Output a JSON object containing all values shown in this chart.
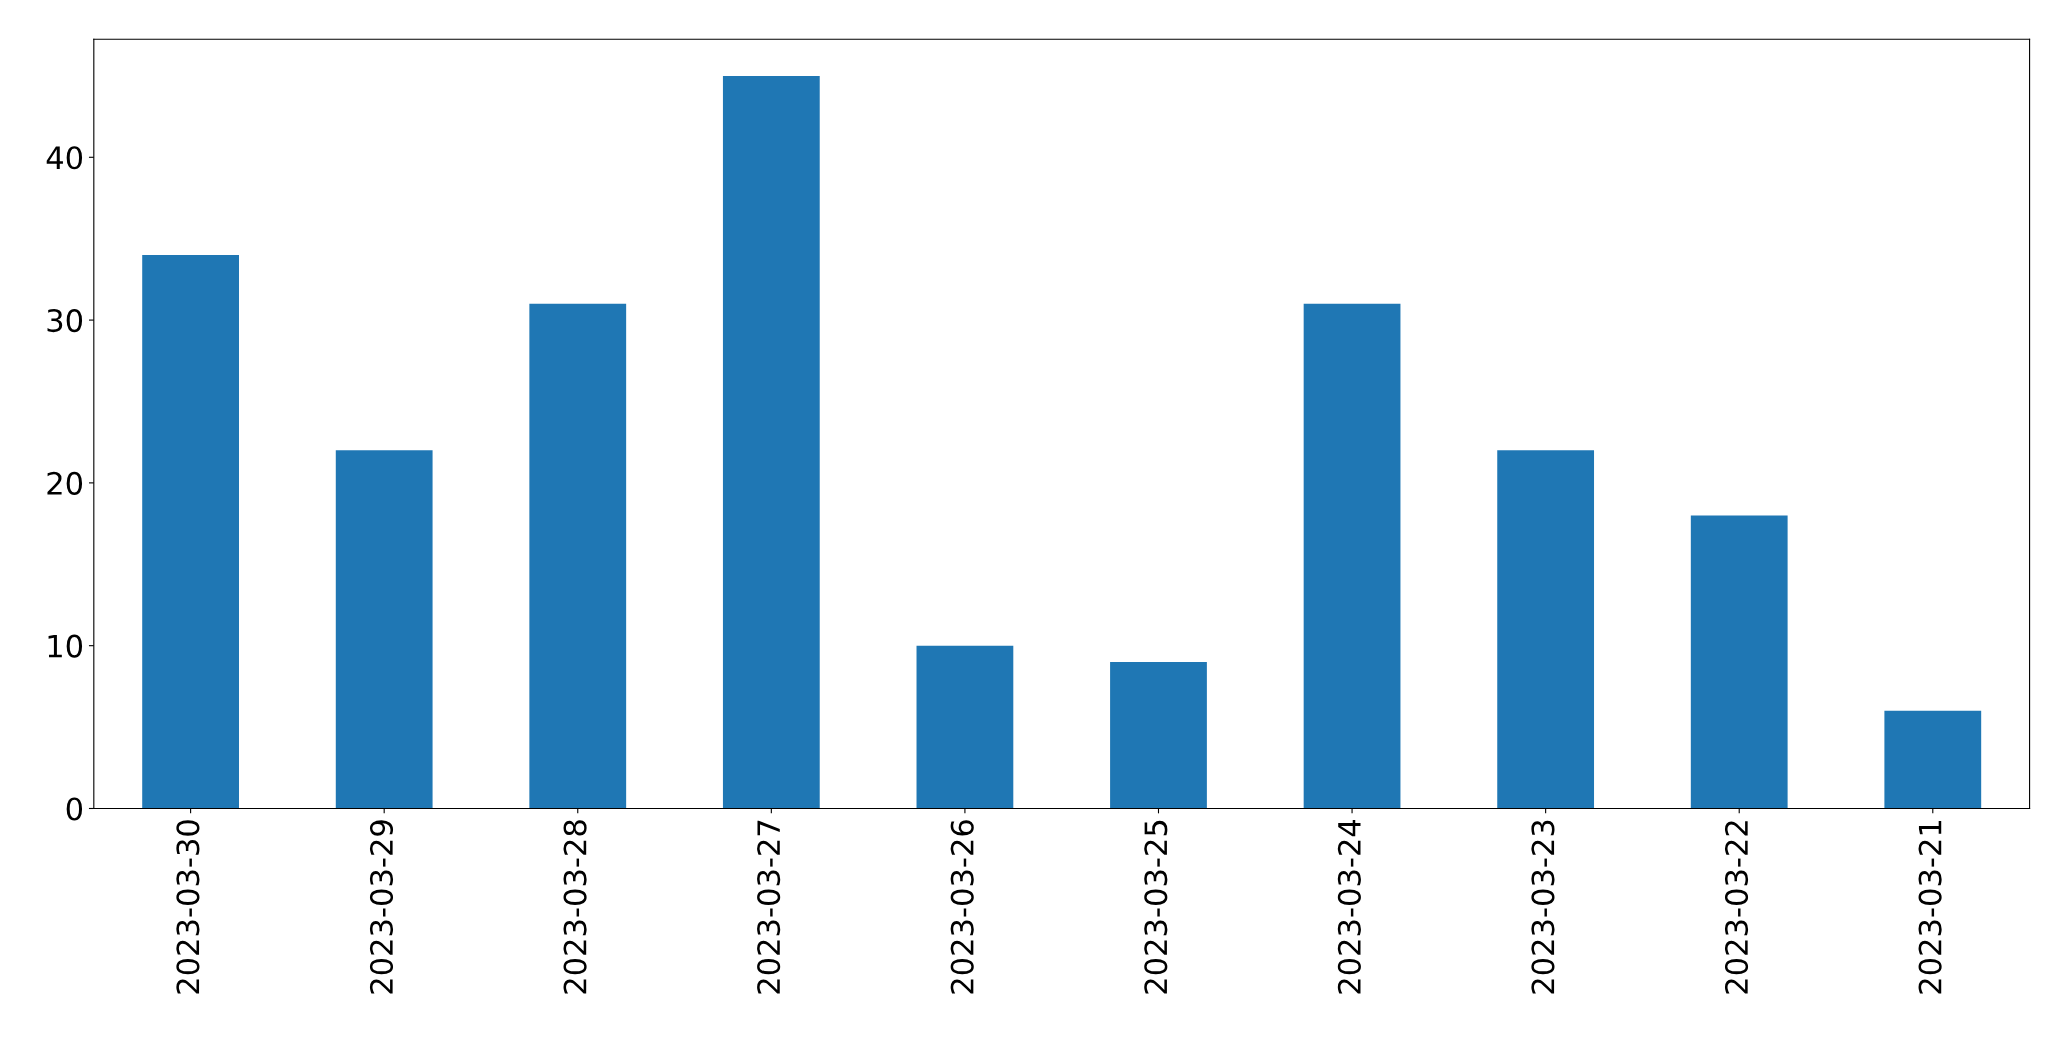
{
  "chart_data": {
    "type": "bar",
    "categories": [
      "2023-03-30",
      "2023-03-29",
      "2023-03-28",
      "2023-03-27",
      "2023-03-26",
      "2023-03-25",
      "2023-03-24",
      "2023-03-23",
      "2023-03-22",
      "2023-03-21"
    ],
    "values": [
      34,
      22,
      31,
      45,
      10,
      9,
      31,
      22,
      18,
      6
    ],
    "color": "#1f77b4",
    "ylim": [
      0,
      47.25
    ],
    "yticks": [
      0,
      10,
      20,
      30,
      40
    ],
    "grid": false,
    "legend": false
  }
}
